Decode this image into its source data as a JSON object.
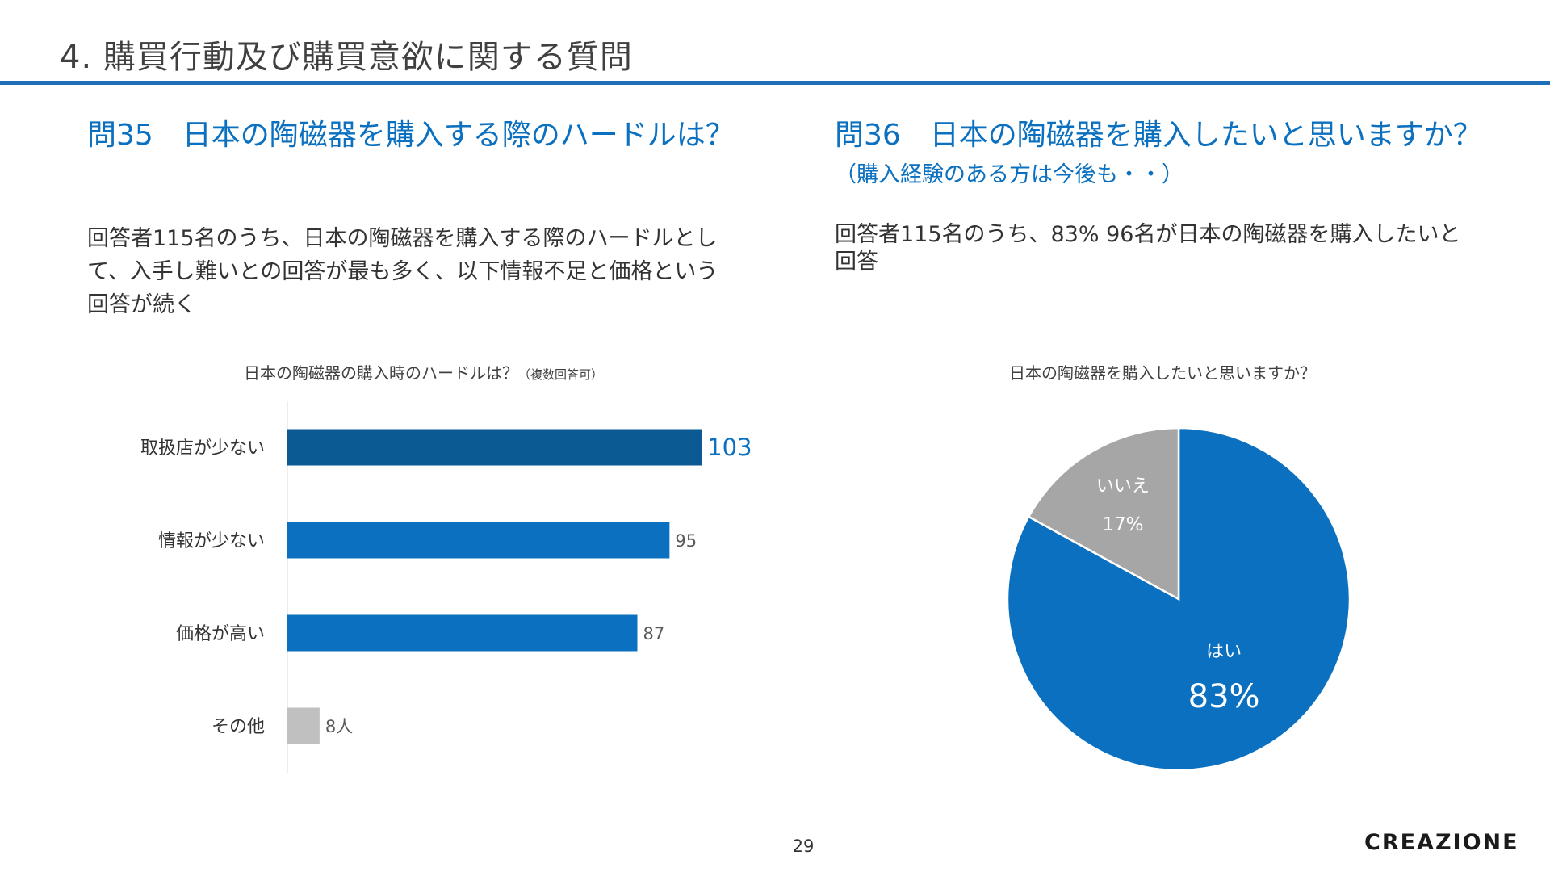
{
  "slide": {
    "title": "4. 購買行動及び購買意欲に関する質問",
    "page_number": "29",
    "brand": "CREAZIONE"
  },
  "q35": {
    "heading": "問35　日本の陶磁器を購入する際のハードルは？",
    "body": "回答者115名のうち、日本の陶磁器を購入する際のハードルとして、入手し難いとの回答が最も多く、以下情報不足と価格という回答が続く"
  },
  "q36": {
    "heading": "問36　日本の陶磁器を購入したいと思いますか？",
    "heading_note": "（購入経験のある方は今後も・・）",
    "body": "回答者115名のうち、83% 96名が日本の陶磁器を購入したいと回答"
  },
  "colors": {
    "accent": "#0a70bf",
    "bar_highlight": "#0b5a94",
    "bar_main": "#0a70bf",
    "bar_other": "#c0c0c0",
    "pie_no": "#a6a6a6",
    "rule": "#1f6fb8"
  },
  "chart_data": [
    {
      "type": "bar",
      "orientation": "horizontal",
      "title": "日本の陶磁器の購入時のハードルは？",
      "title_note": "（複数回答可）",
      "categories": [
        "取扱店が少ない",
        "情報が少ない",
        "価格が高い",
        "その他"
      ],
      "values": [
        103,
        95,
        87,
        8
      ],
      "value_labels": [
        "103",
        "95",
        "87",
        "8人"
      ],
      "xlim": [
        0,
        115
      ],
      "grid": false,
      "legend": "none"
    },
    {
      "type": "pie",
      "title": "日本の陶磁器を購入したいと思いますか？",
      "labels": [
        "はい",
        "いいえ"
      ],
      "values": [
        83,
        17
      ],
      "value_labels": [
        "83%",
        "17%"
      ],
      "legend": "none"
    }
  ]
}
